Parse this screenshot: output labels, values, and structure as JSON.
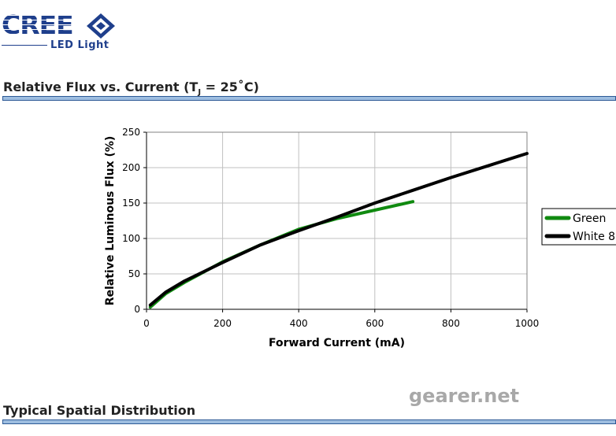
{
  "logo": {
    "brand": "CREE",
    "subtitle": "LED Light"
  },
  "sections": [
    {
      "title_prefix": "Relative Flux vs. Current (T",
      "title_sub": "J",
      "title_suffix": " = 25˚C)"
    },
    {
      "title": "Typical Spatial Distribution"
    }
  ],
  "watermark": "gearer.net",
  "colors": {
    "brand": "#1f3f8c",
    "section_bar": "#9dbde0",
    "section_bar_border": "#2d5a96",
    "green_series": "#108a10",
    "white_series": "#000000",
    "grid": "#c0c0c0"
  },
  "chart_data": {
    "type": "line",
    "xlabel": "Forward Current (mA)",
    "ylabel": "Relative Luminous Flux (%)",
    "xlim": [
      0,
      1000
    ],
    "ylim": [
      0,
      250
    ],
    "x_ticks": [
      "0",
      "200",
      "400",
      "600",
      "800",
      "1000"
    ],
    "y_ticks": [
      "0",
      "50",
      "100",
      "150",
      "200",
      "250"
    ],
    "grid": true,
    "legend_position": "right",
    "series": [
      {
        "name": "Green",
        "color": "#108a10",
        "x": [
          10,
          50,
          100,
          200,
          300,
          350,
          400,
          500,
          600,
          700
        ],
        "y": [
          3,
          22,
          38,
          67,
          91,
          102,
          113,
          128,
          140,
          152
        ]
      },
      {
        "name": "White 8",
        "color": "#000000",
        "x": [
          10,
          50,
          100,
          200,
          300,
          400,
          500,
          600,
          700,
          800,
          900,
          1000
        ],
        "y": [
          6,
          24,
          40,
          66,
          91,
          111,
          130,
          150,
          168,
          186,
          203,
          220
        ]
      }
    ]
  }
}
